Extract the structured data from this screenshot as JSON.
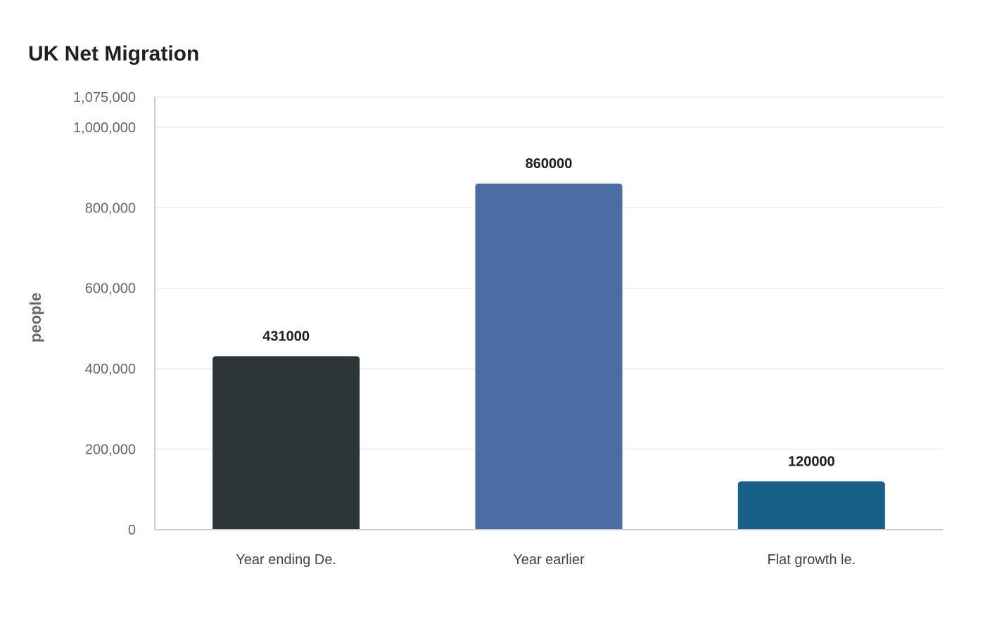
{
  "chart_data": {
    "type": "bar",
    "title": "UK Net Migration",
    "xlabel": "",
    "ylabel": "people",
    "ylim": [
      0,
      1075000
    ],
    "yticks": [
      0,
      200000,
      400000,
      600000,
      800000,
      1000000,
      1075000
    ],
    "ytick_labels": [
      "0",
      "200,000",
      "400,000",
      "600,000",
      "800,000",
      "1,000,000",
      "1,075,000"
    ],
    "categories": [
      "Year ending De.",
      "Year earlier",
      "Flat growth le."
    ],
    "values": [
      431000,
      860000,
      120000
    ],
    "data_labels": [
      "431000",
      "860000",
      "120000"
    ],
    "colors": [
      "#2e3538",
      "#4a6ea3",
      "#176087"
    ],
    "grid": true,
    "legend": "none"
  }
}
